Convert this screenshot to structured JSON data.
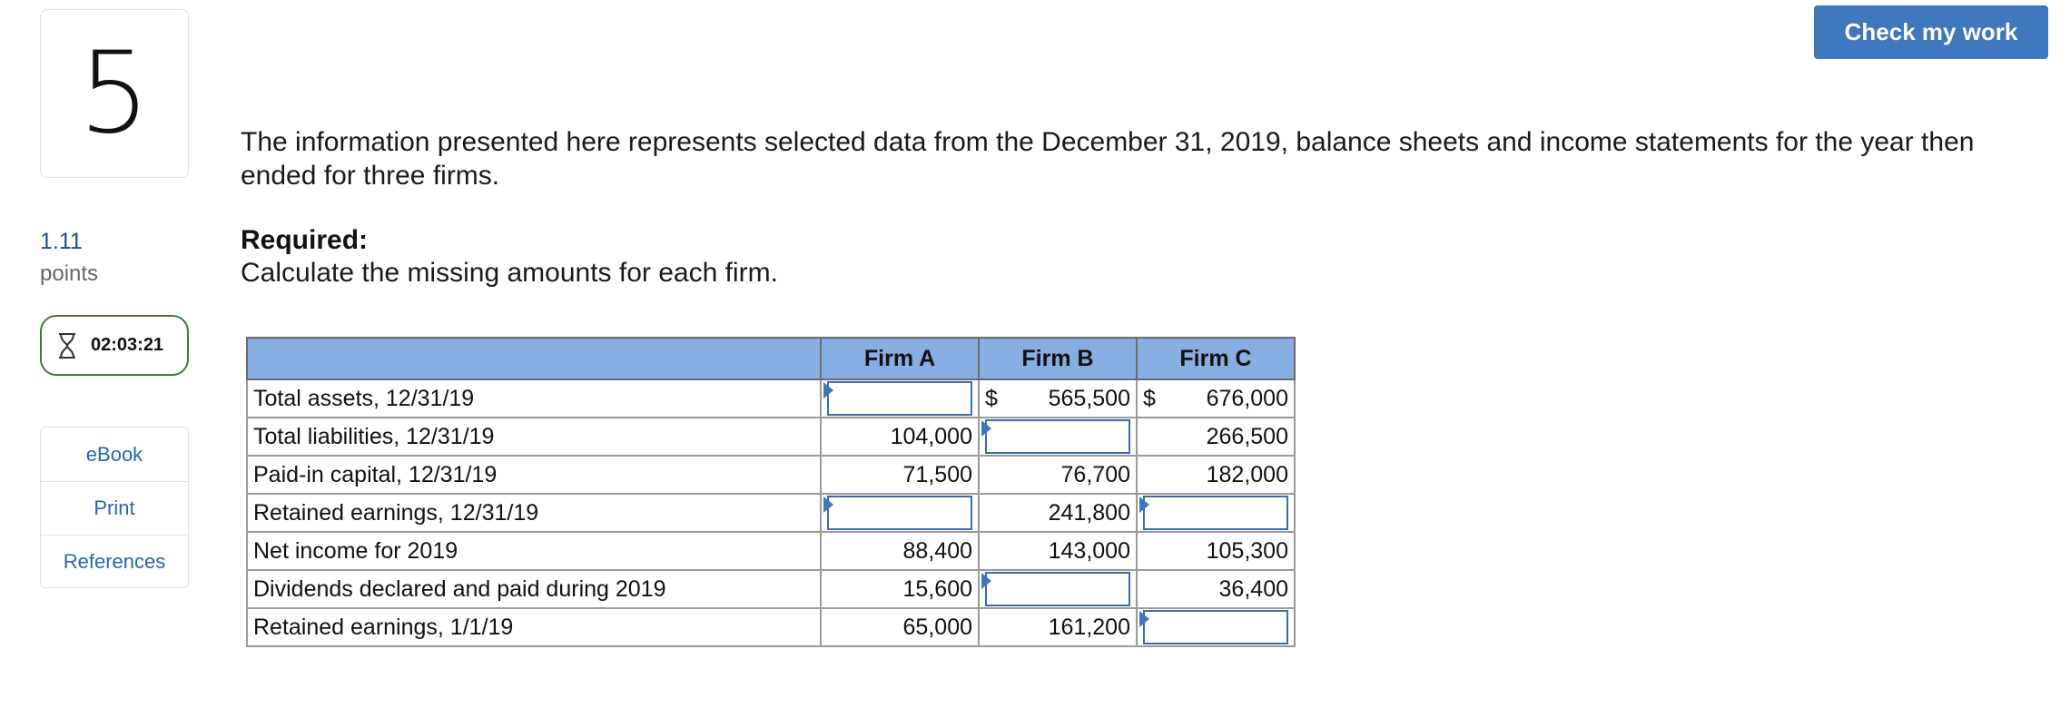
{
  "question": {
    "number": "5",
    "points_value": "1.11",
    "points_label": "points",
    "timer": "02:03:21",
    "check_button": "Check my work"
  },
  "side_links": [
    "eBook",
    "Print",
    "References"
  ],
  "intro": "The information presented here represents selected data from the December 31, 2019, balance sheets and income statements for the year then ended for three firms.",
  "required_label": "Required:",
  "required_text": "Calculate the missing amounts for each firm.",
  "table": {
    "headers": [
      "",
      "Firm A",
      "Firm B",
      "Firm C"
    ],
    "rows": [
      {
        "label": "Total assets, 12/31/19",
        "cells": [
          {
            "input": true,
            "value": ""
          },
          {
            "currency": "$",
            "value": "565,500"
          },
          {
            "currency": "$",
            "value": "676,000"
          }
        ]
      },
      {
        "label": "Total liabilities, 12/31/19",
        "cells": [
          {
            "value": "104,000"
          },
          {
            "input": true,
            "value": ""
          },
          {
            "value": "266,500"
          }
        ]
      },
      {
        "label": "Paid-in capital, 12/31/19",
        "cells": [
          {
            "value": "71,500"
          },
          {
            "value": "76,700"
          },
          {
            "value": "182,000"
          }
        ]
      },
      {
        "label": "Retained earnings, 12/31/19",
        "cells": [
          {
            "input": true,
            "value": ""
          },
          {
            "value": "241,800"
          },
          {
            "input": true,
            "value": ""
          }
        ]
      },
      {
        "label": "Net income for 2019",
        "cells": [
          {
            "value": "88,400"
          },
          {
            "value": "143,000"
          },
          {
            "value": "105,300"
          }
        ]
      },
      {
        "label": "Dividends declared and paid during 2019",
        "cells": [
          {
            "value": "15,600"
          },
          {
            "input": true,
            "value": ""
          },
          {
            "value": "36,400"
          }
        ]
      },
      {
        "label": "Retained earnings, 1/1/19",
        "cells": [
          {
            "value": "65,000"
          },
          {
            "value": "161,200"
          },
          {
            "input": true,
            "value": ""
          }
        ]
      }
    ]
  },
  "colors": {
    "accent": "#3f77bd",
    "table_header": "#86aee0",
    "timer_border": "#3d7a3d",
    "link": "#2e64ad"
  }
}
